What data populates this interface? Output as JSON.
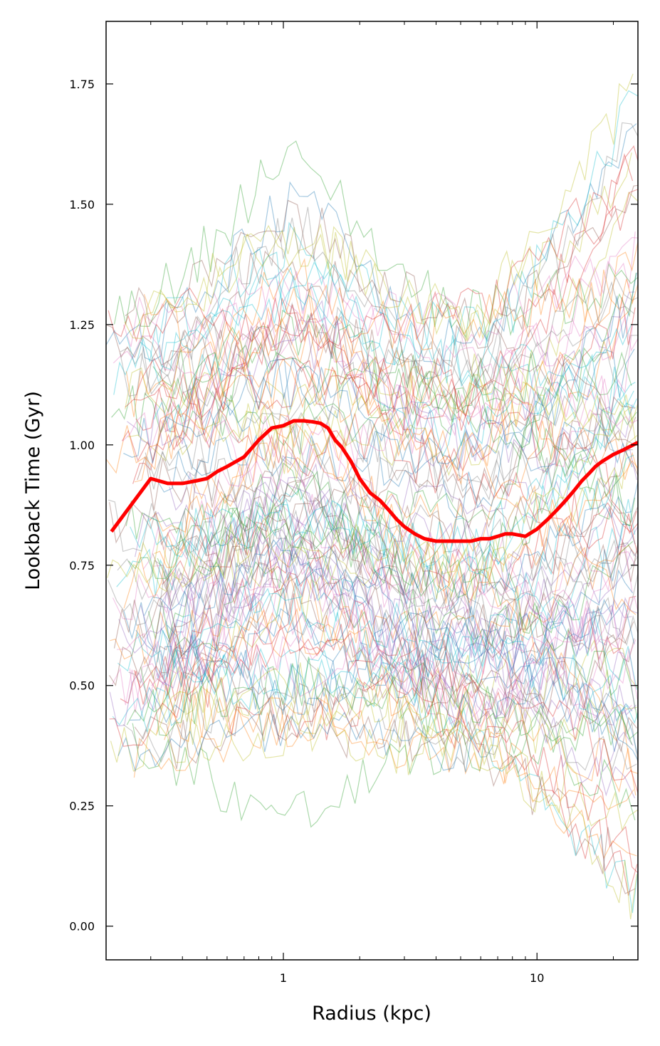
{
  "chart_data": {
    "type": "line",
    "title": "",
    "xlabel": "Radius (kpc)",
    "ylabel": "Lookback Time (Gyr)",
    "xscale": "log",
    "xlim": [
      0.2,
      25
    ],
    "ylim": [
      -0.07,
      1.88
    ],
    "xticks": [
      {
        "value": 1,
        "label": "1"
      },
      {
        "value": 10,
        "label": "10"
      }
    ],
    "yticks": [
      {
        "value": 0.0,
        "label": "0.00"
      },
      {
        "value": 0.25,
        "label": "0.25"
      },
      {
        "value": 0.5,
        "label": "0.50"
      },
      {
        "value": 0.75,
        "label": "0.75"
      },
      {
        "value": 1.0,
        "label": "1.00"
      },
      {
        "value": 1.25,
        "label": "1.25"
      },
      {
        "value": 1.5,
        "label": "1.50"
      },
      {
        "value": 1.75,
        "label": "1.75"
      }
    ],
    "grid": false,
    "tick_direction": "in",
    "palette": [
      "#1f77b4",
      "#ff7f0e",
      "#2ca02c",
      "#d62728",
      "#9467bd",
      "#8c564b",
      "#e377c2",
      "#7f7f7f",
      "#bcbd22",
      "#17becf"
    ],
    "background_profiles": {
      "count": 110,
      "opacity": 0.4,
      "note": "many thin semi-transparent individual profiles spanning roughly 0.0 to 1.8 Gyr"
    },
    "series": [
      {
        "color": "#ff0000",
        "linewidth": 3,
        "x": [
          0.21,
          0.3,
          0.35,
          0.4,
          0.45,
          0.5,
          0.55,
          0.6,
          0.7,
          0.8,
          0.9,
          1.0,
          1.1,
          1.2,
          1.3,
          1.4,
          1.5,
          1.6,
          1.7,
          1.85,
          2.0,
          2.2,
          2.4,
          2.6,
          2.8,
          3.0,
          3.3,
          3.6,
          4.0,
          4.5,
          5.0,
          5.5,
          6.0,
          6.5,
          7.0,
          7.5,
          8.0,
          9.0,
          10.0,
          11.0,
          12.0,
          13.0,
          14.0,
          15.0,
          16.0,
          17.0,
          18.0,
          20.0,
          22.0,
          25.0
        ],
        "y": [
          0.82,
          0.93,
          0.92,
          0.92,
          0.925,
          0.93,
          0.945,
          0.955,
          0.975,
          1.01,
          1.035,
          1.04,
          1.05,
          1.05,
          1.048,
          1.045,
          1.035,
          1.01,
          0.995,
          0.965,
          0.93,
          0.9,
          0.885,
          0.865,
          0.845,
          0.83,
          0.815,
          0.805,
          0.8,
          0.8,
          0.8,
          0.8,
          0.805,
          0.805,
          0.81,
          0.815,
          0.815,
          0.81,
          0.825,
          0.845,
          0.865,
          0.885,
          0.905,
          0.925,
          0.94,
          0.955,
          0.965,
          0.98,
          0.99,
          1.005
        ]
      }
    ]
  }
}
